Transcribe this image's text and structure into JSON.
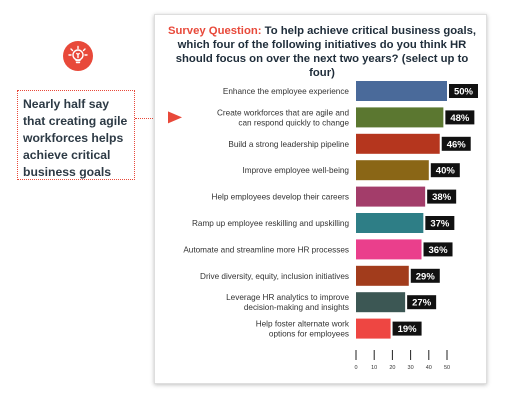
{
  "callout": {
    "icon": "lightbulb-icon",
    "text": "Nearly half say that creating agile workforces helps achieve critical business goals",
    "accent_color": "#e8493a"
  },
  "chart_title": {
    "lead": "Survey Question:",
    "text": "To help achieve critical business goals, which four of the following initiatives do you think HR should focus on over the next two years? (select up to four)"
  },
  "chart_data": {
    "type": "bar",
    "orientation": "horizontal",
    "title": "Survey Question: To help achieve critical business goals, which four of the following initiatives do you think HR should focus on over the next two years? (select up to four)",
    "categories": [
      [
        "Enhance the employee experience"
      ],
      [
        "Create workforces that are agile and",
        "can respond quickly to change"
      ],
      [
        "Build a strong leadership pipeline"
      ],
      [
        "Improve employee well-being"
      ],
      [
        "Help employees develop their careers"
      ],
      [
        "Ramp up employee reskilling and upskilling"
      ],
      [
        "Automate and streamline more HR processes"
      ],
      [
        "Drive diversity, equity, inclusion initiatives"
      ],
      [
        "Leverage HR analytics to improve",
        "decision-making and insights"
      ],
      [
        "Help foster alternate work",
        "options for employees"
      ]
    ],
    "values": [
      50,
      48,
      46,
      40,
      38,
      37,
      36,
      29,
      27,
      19
    ],
    "labels": [
      "50%",
      "48%",
      "46%",
      "40%",
      "38%",
      "37%",
      "36%",
      "29%",
      "27%",
      "19%"
    ],
    "colors": [
      "#4a6a9a",
      "#5b7730",
      "#b5361e",
      "#8a6616",
      "#a33d6a",
      "#2e7e86",
      "#ea3f8c",
      "#a23c1c",
      "#3c5754",
      "#ee4642"
    ],
    "label_bg": "#111111",
    "label_color": "#ffffff",
    "xlim": [
      0,
      50
    ],
    "xticks": [
      0,
      10,
      20,
      30,
      40,
      50
    ],
    "grid": false,
    "legend": "none"
  }
}
